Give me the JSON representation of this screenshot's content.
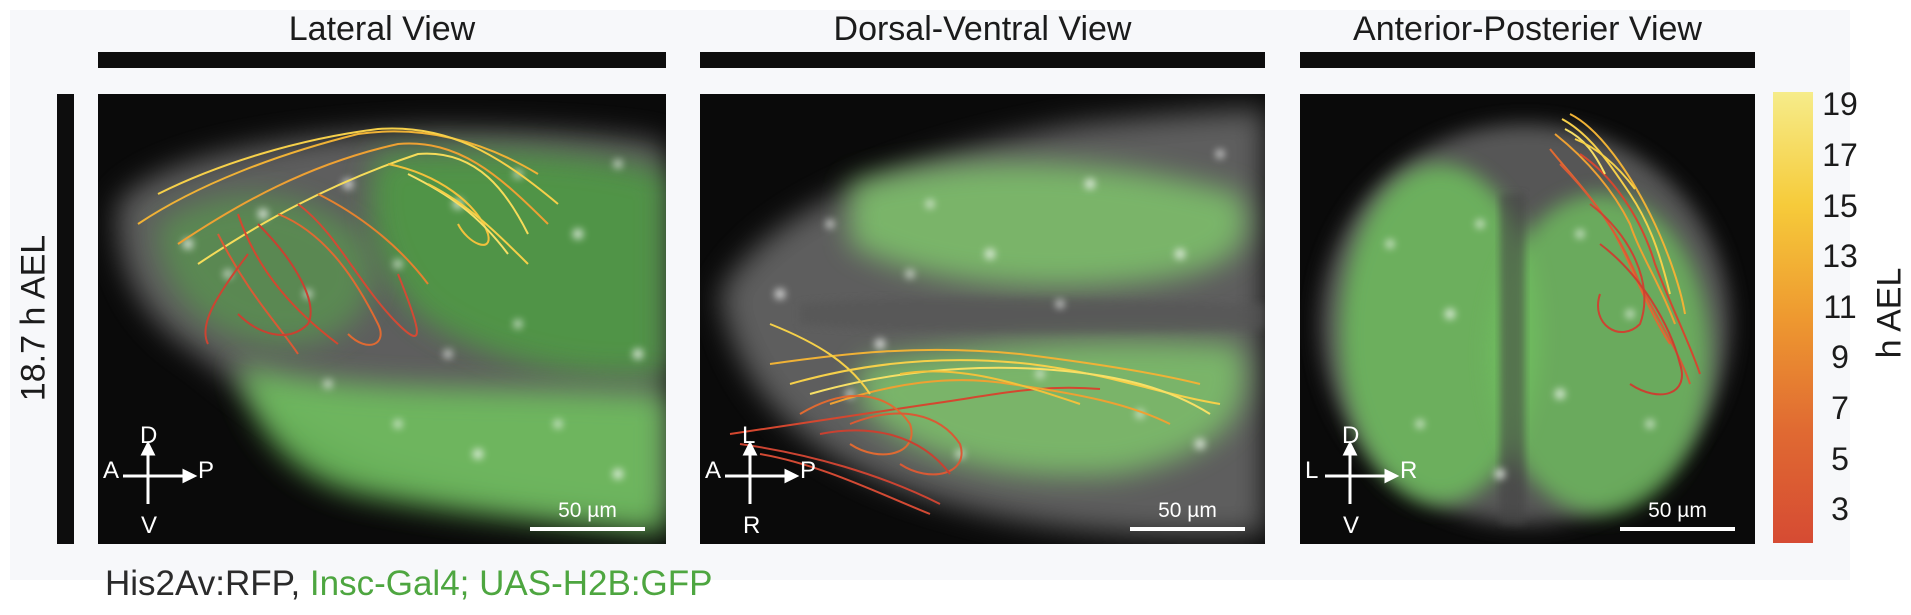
{
  "views": [
    {
      "title": "Lateral View",
      "axes": {
        "up": "D",
        "left": "A",
        "right": "P",
        "down": "V"
      },
      "scale": "50 µm"
    },
    {
      "title": "Dorsal-Ventral View",
      "axes": {
        "up": "L",
        "left": "A",
        "right": "P",
        "down": "R"
      },
      "scale": "50 µm"
    },
    {
      "title": "Anterior-Posterier View",
      "axes": {
        "up": "D",
        "left": "L",
        "right": "R",
        "down": "V"
      },
      "scale": "50 µm"
    }
  ],
  "row_label": "18.7 h AEL",
  "colorbar": {
    "label": "h AEL",
    "ticks": [
      "19",
      "17",
      "15",
      "13",
      "11",
      "9",
      "7",
      "5",
      "3"
    ],
    "colors": [
      "#d64b33",
      "#e06a32",
      "#ee9930",
      "#f6cb3a",
      "#f6ec8a"
    ]
  },
  "caption": {
    "part1": "His2Av:RFP, ",
    "part2": "Insc-Gal4; UAS-H2B:GFP"
  }
}
